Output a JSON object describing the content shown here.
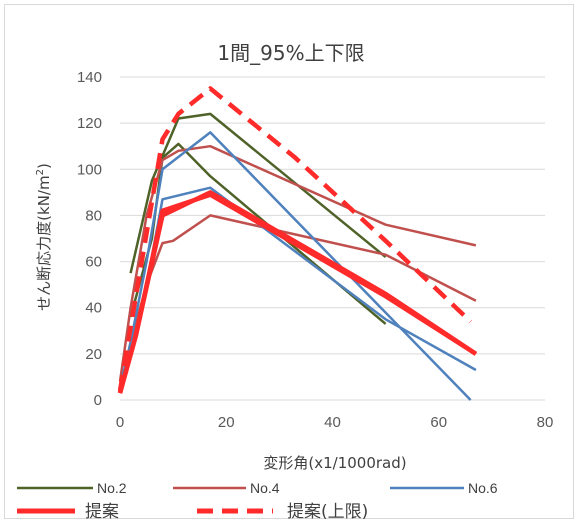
{
  "chart_data": {
    "type": "line",
    "title": "1間_95%上下限",
    "xlabel": "変形角(x1/1000rad)",
    "ylabel": "せん断応力度(kN/m²)",
    "ylabel_main": "せん断応力度(kN/m",
    "ylabel_sup": "2",
    "ylabel_tail": ")",
    "xlim": [
      0,
      80
    ],
    "ylim": [
      0,
      140
    ],
    "xticks": [
      0,
      20,
      40,
      60,
      80
    ],
    "yticks": [
      0,
      20,
      40,
      60,
      80,
      100,
      120,
      140
    ],
    "xtick_labels": [
      "0",
      "20",
      "40",
      "60",
      "80"
    ],
    "ytick_labels": [
      "0",
      "20",
      "40",
      "60",
      "80",
      "100",
      "120",
      "140"
    ],
    "grid": "horizontal",
    "legend_position": "bottom",
    "series": [
      {
        "name": "No.2",
        "color": "#4f6228",
        "style": "solid",
        "weight": "thin",
        "lines": [
          [
            [
              2,
              55
            ],
            [
              6,
              95
            ],
            [
              11,
              122
            ],
            [
              17,
              124
            ],
            [
              50,
              62
            ]
          ],
          [
            [
              2,
              36
            ],
            [
              6,
              70
            ],
            [
              8,
              105
            ],
            [
              11,
              111
            ],
            [
              17,
              97
            ],
            [
              50,
              33
            ]
          ]
        ]
      },
      {
        "name": "No.4",
        "color": "#c0504d",
        "style": "solid",
        "weight": "thin",
        "lines": [
          [
            [
              0,
              8
            ],
            [
              2,
              40
            ],
            [
              5,
              80
            ],
            [
              8,
              104
            ],
            [
              11,
              108
            ],
            [
              17,
              110
            ],
            [
              50,
              76
            ],
            [
              67,
              67
            ]
          ],
          [
            [
              0,
              5
            ],
            [
              2,
              25
            ],
            [
              5,
              50
            ],
            [
              8,
              68
            ],
            [
              10,
              69
            ],
            [
              17,
              80
            ],
            [
              50,
              63
            ],
            [
              67,
              43
            ]
          ]
        ]
      },
      {
        "name": "No.6",
        "color": "#4f81bd",
        "style": "solid",
        "weight": "thin",
        "lines": [
          [
            [
              0,
              5
            ],
            [
              2,
              25
            ],
            [
              5,
              60
            ],
            [
              8,
              100
            ],
            [
              17,
              116
            ],
            [
              66,
              0
            ]
          ],
          [
            [
              0,
              3
            ],
            [
              2,
              20
            ],
            [
              5,
              50
            ],
            [
              8,
              87
            ],
            [
              17,
              92
            ],
            [
              50,
              35
            ],
            [
              67,
              13
            ]
          ]
        ]
      },
      {
        "name": "提案",
        "color": "#ff2a2a",
        "style": "solid",
        "weight": "thick",
        "lines": [
          [
            [
              0,
              3
            ],
            [
              3,
              28
            ],
            [
              8,
              80
            ],
            [
              17,
              90
            ],
            [
              50,
              46
            ],
            [
              67,
              20
            ]
          ],
          [
            [
              0,
              3
            ],
            [
              3,
              28
            ],
            [
              8,
              82
            ],
            [
              17,
              89
            ],
            [
              50,
              45
            ],
            [
              67,
              20
            ]
          ]
        ]
      },
      {
        "name": "提案(上限)",
        "color": "#ff2a2a",
        "style": "dashed",
        "weight": "thick",
        "lines": [
          [
            [
              0,
              4
            ],
            [
              3,
              45
            ],
            [
              8,
              113
            ],
            [
              11,
              124
            ],
            [
              17,
              135
            ],
            [
              33,
              105
            ],
            [
              50,
              69
            ],
            [
              66,
              34
            ]
          ]
        ]
      }
    ]
  }
}
